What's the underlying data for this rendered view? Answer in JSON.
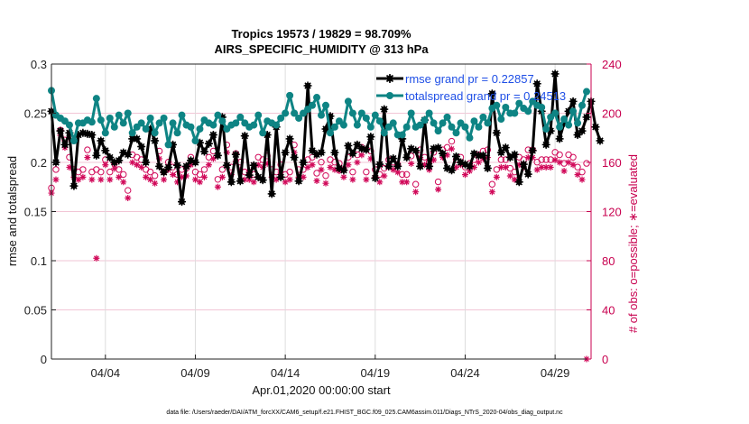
{
  "chart_data": {
    "type": "line",
    "title": [
      "Tropics 19573 / 19829 = 98.709%",
      "AIRS_SPECIFIC_HUMIDITY @ 313 hPa"
    ],
    "xlabel": "Apr.01,2020 00:00:00 start",
    "ylabel": "rmse and totalspread",
    "ylabel_right": "# of obs: o=possible; ∗=evaluated",
    "footer": "data file: /Users/raeder/DAI/ATM_forcXX/CAM6_setup/f.e21.FHIST_BGC.f09_025.CAM6assim.011/Diags_NTrS_2020-04/obs_diag_output.nc",
    "xlim_days": [
      0,
      30
    ],
    "ylim": [
      0,
      0.3
    ],
    "ylim_right": [
      0,
      240
    ],
    "yticks": [
      "0",
      "0.05",
      "0.1",
      "0.15",
      "0.2",
      "0.25",
      "0.3"
    ],
    "yticks_values": [
      0,
      0.05,
      0.1,
      0.15,
      0.2,
      0.25,
      0.3
    ],
    "yticks_right": [
      "0",
      "40",
      "80",
      "120",
      "160",
      "200",
      "240"
    ],
    "yticks_right_values": [
      0,
      40,
      80,
      120,
      160,
      200,
      240
    ],
    "xticks": [
      "04/04",
      "04/09",
      "04/14",
      "04/19",
      "04/24",
      "04/29"
    ],
    "xticks_days": [
      3,
      8,
      13,
      18,
      23,
      28
    ],
    "grid": true,
    "legend_position": "top-right",
    "x_step_days": 0.25,
    "series": [
      {
        "name": "rmse grand pr = 0.22857",
        "color": "#000000",
        "marker": "star-filled",
        "values": [
          0.252,
          0.2,
          0.232,
          0.218,
          0.23,
          0.176,
          0.228,
          0.23,
          0.229,
          0.228,
          0.207,
          0.222,
          0.212,
          0.205,
          0.2,
          0.202,
          0.21,
          0.208,
          0.224,
          0.224,
          0.216,
          0.2,
          0.234,
          0.222,
          0.196,
          0.19,
          0.195,
          0.218,
          0.197,
          0.16,
          0.196,
          0.202,
          0.2,
          0.22,
          0.211,
          0.219,
          0.228,
          0.207,
          0.246,
          0.197,
          0.18,
          0.208,
          0.181,
          0.227,
          0.187,
          0.197,
          0.185,
          0.182,
          0.228,
          0.168,
          0.236,
          0.185,
          0.21,
          0.224,
          0.205,
          0.181,
          0.2,
          0.278,
          0.212,
          0.208,
          0.21,
          0.234,
          0.247,
          0.21,
          0.194,
          0.192,
          0.217,
          0.209,
          0.218,
          0.214,
          0.213,
          0.226,
          0.184,
          0.198,
          0.254,
          0.196,
          0.204,
          0.196,
          0.224,
          0.205,
          0.214,
          0.212,
          0.196,
          0.243,
          0.196,
          0.214,
          0.215,
          0.209,
          0.194,
          0.192,
          0.206,
          0.2,
          0.198,
          0.196,
          0.209,
          0.207,
          0.207,
          0.194,
          0.27,
          0.23,
          0.21,
          0.215,
          0.205,
          0.208,
          0.18,
          0.198,
          0.188,
          0.212,
          0.28,
          0.252,
          0.218,
          0.232,
          0.29,
          0.224,
          0.24,
          0.252,
          0.262,
          0.228,
          0.232,
          0.246,
          0.262,
          0.236,
          0.222
        ],
        "values_note": "approximate, read off plot"
      },
      {
        "name": "totalspread grand pr = 0.24513",
        "color": "#0e8484",
        "marker": "circle-filled",
        "values": [
          0.273,
          0.248,
          0.245,
          0.242,
          0.238,
          0.222,
          0.24,
          0.24,
          0.243,
          0.241,
          0.265,
          0.243,
          0.23,
          0.245,
          0.236,
          0.248,
          0.24,
          0.25,
          0.23,
          0.236,
          0.24,
          0.234,
          0.245,
          0.23,
          0.24,
          0.245,
          0.218,
          0.24,
          0.23,
          0.248,
          0.238,
          0.236,
          0.222,
          0.234,
          0.243,
          0.24,
          0.238,
          0.248,
          0.242,
          0.234,
          0.238,
          0.24,
          0.246,
          0.24,
          0.236,
          0.238,
          0.248,
          0.23,
          0.242,
          0.24,
          0.238,
          0.245,
          0.25,
          0.268,
          0.25,
          0.245,
          0.25,
          0.254,
          0.258,
          0.266,
          0.248,
          0.258,
          0.23,
          0.236,
          0.242,
          0.238,
          0.262,
          0.25,
          0.238,
          0.25,
          0.245,
          0.236,
          0.248,
          0.242,
          0.23,
          0.236,
          0.24,
          0.228,
          0.228,
          0.236,
          0.25,
          0.236,
          0.238,
          0.243,
          0.25,
          0.24,
          0.232,
          0.24,
          0.246,
          0.236,
          0.23,
          0.24,
          0.236,
          0.225,
          0.242,
          0.236,
          0.246,
          0.24,
          0.255,
          0.258,
          0.244,
          0.256,
          0.25,
          0.25,
          0.26,
          0.255,
          0.252,
          0.262,
          0.258,
          0.256,
          0.234,
          0.246,
          0.25,
          0.236,
          0.244,
          0.238,
          0.252,
          0.24,
          0.258,
          0.272
        ],
        "values_note": "approximate, read off plot"
      },
      {
        "name": "obs possible",
        "color": "#d10a5a",
        "marker": "open-circle",
        "axis": "right",
        "values": [
          137,
          152,
          184,
          176,
          162,
          152,
          150,
          152,
          168,
          150,
          152,
          150,
          160,
          150,
          157,
          152,
          148,
          135,
          164,
          162,
          160,
          152,
          150,
          147,
          167,
          150,
          158,
          154,
          148,
          152,
          153,
          162,
          150,
          148,
          152,
          162,
          167,
          144,
          152,
          172,
          154,
          165,
          158,
          150,
          150,
          148,
          162,
          160,
          163,
          152,
          150,
          156,
          148,
          150,
          172,
          152,
          152,
          160,
          162,
          149,
          158,
          147,
          160,
          158,
          157,
          152,
          162,
          150,
          164,
          170,
          150,
          167,
          152,
          148,
          153,
          160,
          158,
          156,
          148,
          148,
          163,
          140,
          168,
          162,
          158,
          166,
          142,
          168,
          170,
          175,
          160,
          162,
          154,
          157,
          160,
          164,
          167,
          168,
          140,
          152,
          160,
          160,
          153,
          150,
          162,
          160,
          168,
          168,
          158,
          160,
          160,
          160,
          166,
          164,
          157,
          164,
          162,
          154,
          150,
          157
        ],
        "values_note": "approximate, read off plot"
      },
      {
        "name": "obs evaluated",
        "color": "#d10a5a",
        "marker": "asterisk",
        "axis": "right",
        "values": [
          135,
          146,
          182,
          172,
          156,
          148,
          146,
          148,
          164,
          146,
          82,
          146,
          158,
          146,
          155,
          148,
          144,
          131,
          160,
          158,
          156,
          148,
          146,
          143,
          163,
          146,
          154,
          150,
          144,
          148,
          149,
          158,
          146,
          144,
          148,
          158,
          163,
          140,
          148,
          168,
          150,
          161,
          154,
          146,
          146,
          144,
          158,
          156,
          159,
          148,
          146,
          152,
          144,
          146,
          168,
          148,
          148,
          156,
          158,
          145,
          154,
          143,
          156,
          154,
          153,
          148,
          158,
          146,
          160,
          166,
          146,
          163,
          148,
          144,
          149,
          156,
          154,
          152,
          144,
          144,
          159,
          136,
          164,
          158,
          154,
          162,
          138,
          164,
          166,
          171,
          156,
          158,
          150,
          153,
          156,
          160,
          163,
          164,
          136,
          148,
          156,
          156,
          149,
          146,
          158,
          156,
          164,
          164,
          154,
          156,
          156,
          156,
          162,
          160,
          153,
          160,
          158,
          150,
          146,
          0
        ],
        "values_note": "approximate, read off plot"
      }
    ]
  }
}
